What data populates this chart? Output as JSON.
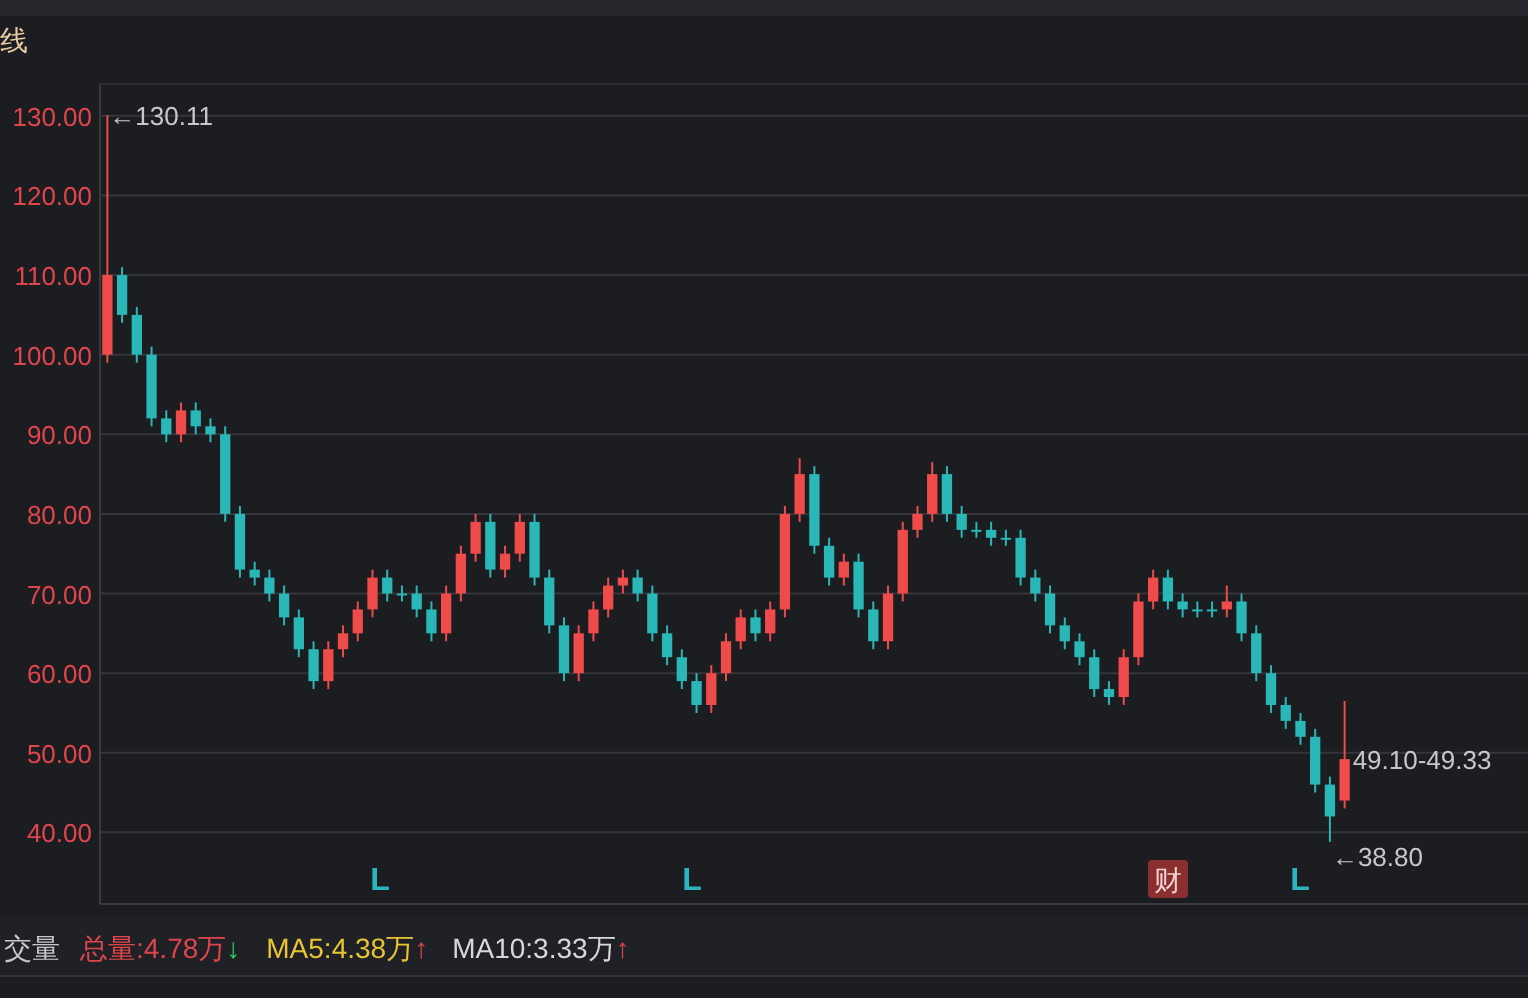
{
  "chart_data": {
    "type": "candlestick",
    "categories": [
      null,
      null,
      null,
      null,
      null,
      null,
      null,
      null,
      null,
      null,
      null,
      null,
      null,
      null,
      null,
      null,
      null,
      null,
      null,
      null,
      null,
      null,
      null,
      null,
      null,
      null,
      null,
      null,
      null,
      null,
      null,
      null,
      null,
      null,
      null,
      null,
      null,
      null,
      null,
      null,
      null,
      null,
      null,
      null,
      null,
      null,
      null,
      null,
      null,
      null,
      null,
      null,
      null,
      null,
      null,
      null,
      null,
      null,
      null,
      null,
      null,
      null,
      null,
      null,
      null,
      null,
      null,
      null,
      null,
      null,
      null,
      null,
      null,
      null,
      null,
      null,
      null,
      null,
      null,
      null,
      null,
      null,
      null,
      null,
      null
    ],
    "ohlc": [
      [
        100,
        130.11,
        99,
        110
      ],
      [
        110,
        111,
        104,
        105
      ],
      [
        105,
        106,
        99,
        100
      ],
      [
        100,
        101,
        91,
        92
      ],
      [
        92,
        93,
        89,
        90
      ],
      [
        90,
        94,
        89,
        93
      ],
      [
        93,
        94,
        90,
        91
      ],
      [
        91,
        92,
        89,
        90
      ],
      [
        90,
        91,
        79,
        80
      ],
      [
        80,
        81,
        72,
        73
      ],
      [
        73,
        74,
        71,
        72
      ],
      [
        72,
        73,
        69,
        70
      ],
      [
        70,
        71,
        66,
        67
      ],
      [
        67,
        68,
        62,
        63
      ],
      [
        63,
        64,
        58,
        59
      ],
      [
        59,
        64,
        58,
        63
      ],
      [
        63,
        66,
        62,
        65
      ],
      [
        65,
        69,
        64,
        68
      ],
      [
        68,
        73,
        67,
        72
      ],
      [
        72,
        73,
        69,
        70
      ],
      [
        70,
        71,
        69,
        70
      ],
      [
        70,
        71,
        67,
        68
      ],
      [
        68,
        69,
        64,
        65
      ],
      [
        65,
        71,
        64,
        70
      ],
      [
        70,
        76,
        69,
        75
      ],
      [
        75,
        80,
        74,
        79
      ],
      [
        79,
        80,
        72,
        73
      ],
      [
        73,
        76,
        72,
        75
      ],
      [
        75,
        80,
        74,
        79
      ],
      [
        79,
        80,
        71,
        72
      ],
      [
        72,
        73,
        65,
        66
      ],
      [
        66,
        67,
        59,
        60
      ],
      [
        60,
        66,
        59,
        65
      ],
      [
        65,
        69,
        64,
        68
      ],
      [
        68,
        72,
        67,
        71
      ],
      [
        71,
        73,
        70,
        72
      ],
      [
        72,
        73,
        69,
        70
      ],
      [
        70,
        71,
        64,
        65
      ],
      [
        65,
        66,
        61,
        62
      ],
      [
        62,
        63,
        58,
        59
      ],
      [
        59,
        60,
        55,
        56
      ],
      [
        56,
        61,
        55,
        60
      ],
      [
        60,
        65,
        59,
        64
      ],
      [
        64,
        68,
        63,
        67
      ],
      [
        67,
        68,
        64,
        65
      ],
      [
        65,
        69,
        64,
        68
      ],
      [
        68,
        81,
        67,
        80
      ],
      [
        80,
        87,
        79,
        85
      ],
      [
        85,
        86,
        75,
        76
      ],
      [
        76,
        77,
        71,
        72
      ],
      [
        72,
        75,
        71,
        74
      ],
      [
        74,
        75,
        67,
        68
      ],
      [
        68,
        69,
        63,
        64
      ],
      [
        64,
        71,
        63,
        70
      ],
      [
        70,
        79,
        69,
        78
      ],
      [
        78,
        81,
        77,
        80
      ],
      [
        80,
        86.5,
        79,
        85
      ],
      [
        85,
        86,
        79,
        80
      ],
      [
        80,
        81,
        77,
        78
      ],
      [
        78,
        79,
        77,
        78
      ],
      [
        78,
        79,
        76,
        77
      ],
      [
        77,
        78,
        76,
        77
      ],
      [
        77,
        78,
        71,
        72
      ],
      [
        72,
        73,
        69,
        70
      ],
      [
        70,
        71,
        65,
        66
      ],
      [
        66,
        67,
        63,
        64
      ],
      [
        64,
        65,
        61,
        62
      ],
      [
        62,
        63,
        57,
        58
      ],
      [
        58,
        59,
        56,
        57
      ],
      [
        57,
        63,
        56,
        62
      ],
      [
        62,
        70,
        61,
        69
      ],
      [
        69,
        73,
        68,
        72
      ],
      [
        72,
        73,
        68,
        69
      ],
      [
        69,
        70,
        67,
        68
      ],
      [
        68,
        69,
        67,
        68
      ],
      [
        68,
        69,
        67,
        68
      ],
      [
        68,
        71,
        67,
        69
      ],
      [
        69,
        70,
        64,
        65
      ],
      [
        65,
        66,
        59,
        60
      ],
      [
        60,
        61,
        55,
        56
      ],
      [
        56,
        57,
        53,
        54
      ],
      [
        54,
        55,
        51,
        52
      ],
      [
        52,
        53,
        45,
        46
      ],
      [
        46,
        47,
        38.8,
        42
      ],
      [
        44,
        56.5,
        43,
        49.2
      ]
    ],
    "colors": [
      "#ef4b4b",
      "#2ab7b7",
      "#2ab7b7",
      "#2ab7b7",
      "#2ab7b7",
      "#ef4b4b",
      "#2ab7b7",
      "#2ab7b7",
      "#2ab7b7",
      "#2ab7b7",
      "#2ab7b7",
      "#2ab7b7",
      "#2ab7b7",
      "#2ab7b7",
      "#2ab7b7",
      "#ef4b4b",
      "#ef4b4b",
      "#ef4b4b",
      "#ef4b4b",
      "#2ab7b7",
      "#2ab7b7",
      "#2ab7b7",
      "#2ab7b7",
      "#ef4b4b",
      "#ef4b4b",
      "#ef4b4b",
      "#2ab7b7",
      "#ef4b4b",
      "#ef4b4b",
      "#2ab7b7",
      "#2ab7b7",
      "#2ab7b7",
      "#ef4b4b",
      "#ef4b4b",
      "#ef4b4b",
      "#ef4b4b",
      "#2ab7b7",
      "#2ab7b7",
      "#2ab7b7",
      "#2ab7b7",
      "#2ab7b7",
      "#ef4b4b",
      "#ef4b4b",
      "#ef4b4b",
      "#2ab7b7",
      "#ef4b4b",
      "#ef4b4b",
      "#ef4b4b",
      "#2ab7b7",
      "#2ab7b7",
      "#ef4b4b",
      "#2ab7b7",
      "#2ab7b7",
      "#ef4b4b",
      "#ef4b4b",
      "#ef4b4b",
      "#ef4b4b",
      "#2ab7b7",
      "#2ab7b7",
      "#2ab7b7",
      "#2ab7b7",
      "#2ab7b7",
      "#2ab7b7",
      "#2ab7b7",
      "#2ab7b7",
      "#2ab7b7",
      "#2ab7b7",
      "#2ab7b7",
      "#2ab7b7",
      "#ef4b4b",
      "#ef4b4b",
      "#ef4b4b",
      "#2ab7b7",
      "#2ab7b7",
      "#2ab7b7",
      "#2ab7b7",
      "#ef4b4b",
      "#2ab7b7",
      "#2ab7b7",
      "#2ab7b7",
      "#2ab7b7",
      "#2ab7b7",
      "#2ab7b7",
      "#2ab7b7",
      "#ef4b4b"
    ],
    "ylim": [
      31,
      134
    ],
    "yticks": [
      {
        "value": 40,
        "label": "40.00"
      },
      {
        "value": 50,
        "label": "50.00"
      },
      {
        "value": 60,
        "label": "60.00"
      },
      {
        "value": 70,
        "label": "70.00"
      },
      {
        "value": 80,
        "label": "80.00"
      },
      {
        "value": 90,
        "label": "90.00"
      },
      {
        "value": 100,
        "label": "100.00"
      },
      {
        "value": 110,
        "label": "110.00"
      },
      {
        "value": 120,
        "label": "120.00"
      },
      {
        "value": 130,
        "label": "130.00"
      }
    ],
    "grid": "y",
    "tick_labels": "y",
    "annotations": [
      "←130.11",
      "←38.80",
      "49.10-49.33",
      "L",
      "L",
      "L",
      "财",
      "交量",
      "总量:4.78万↓",
      "MA5:4.38万↑",
      "MA10:3.33万↑",
      "线"
    ]
  }
}
